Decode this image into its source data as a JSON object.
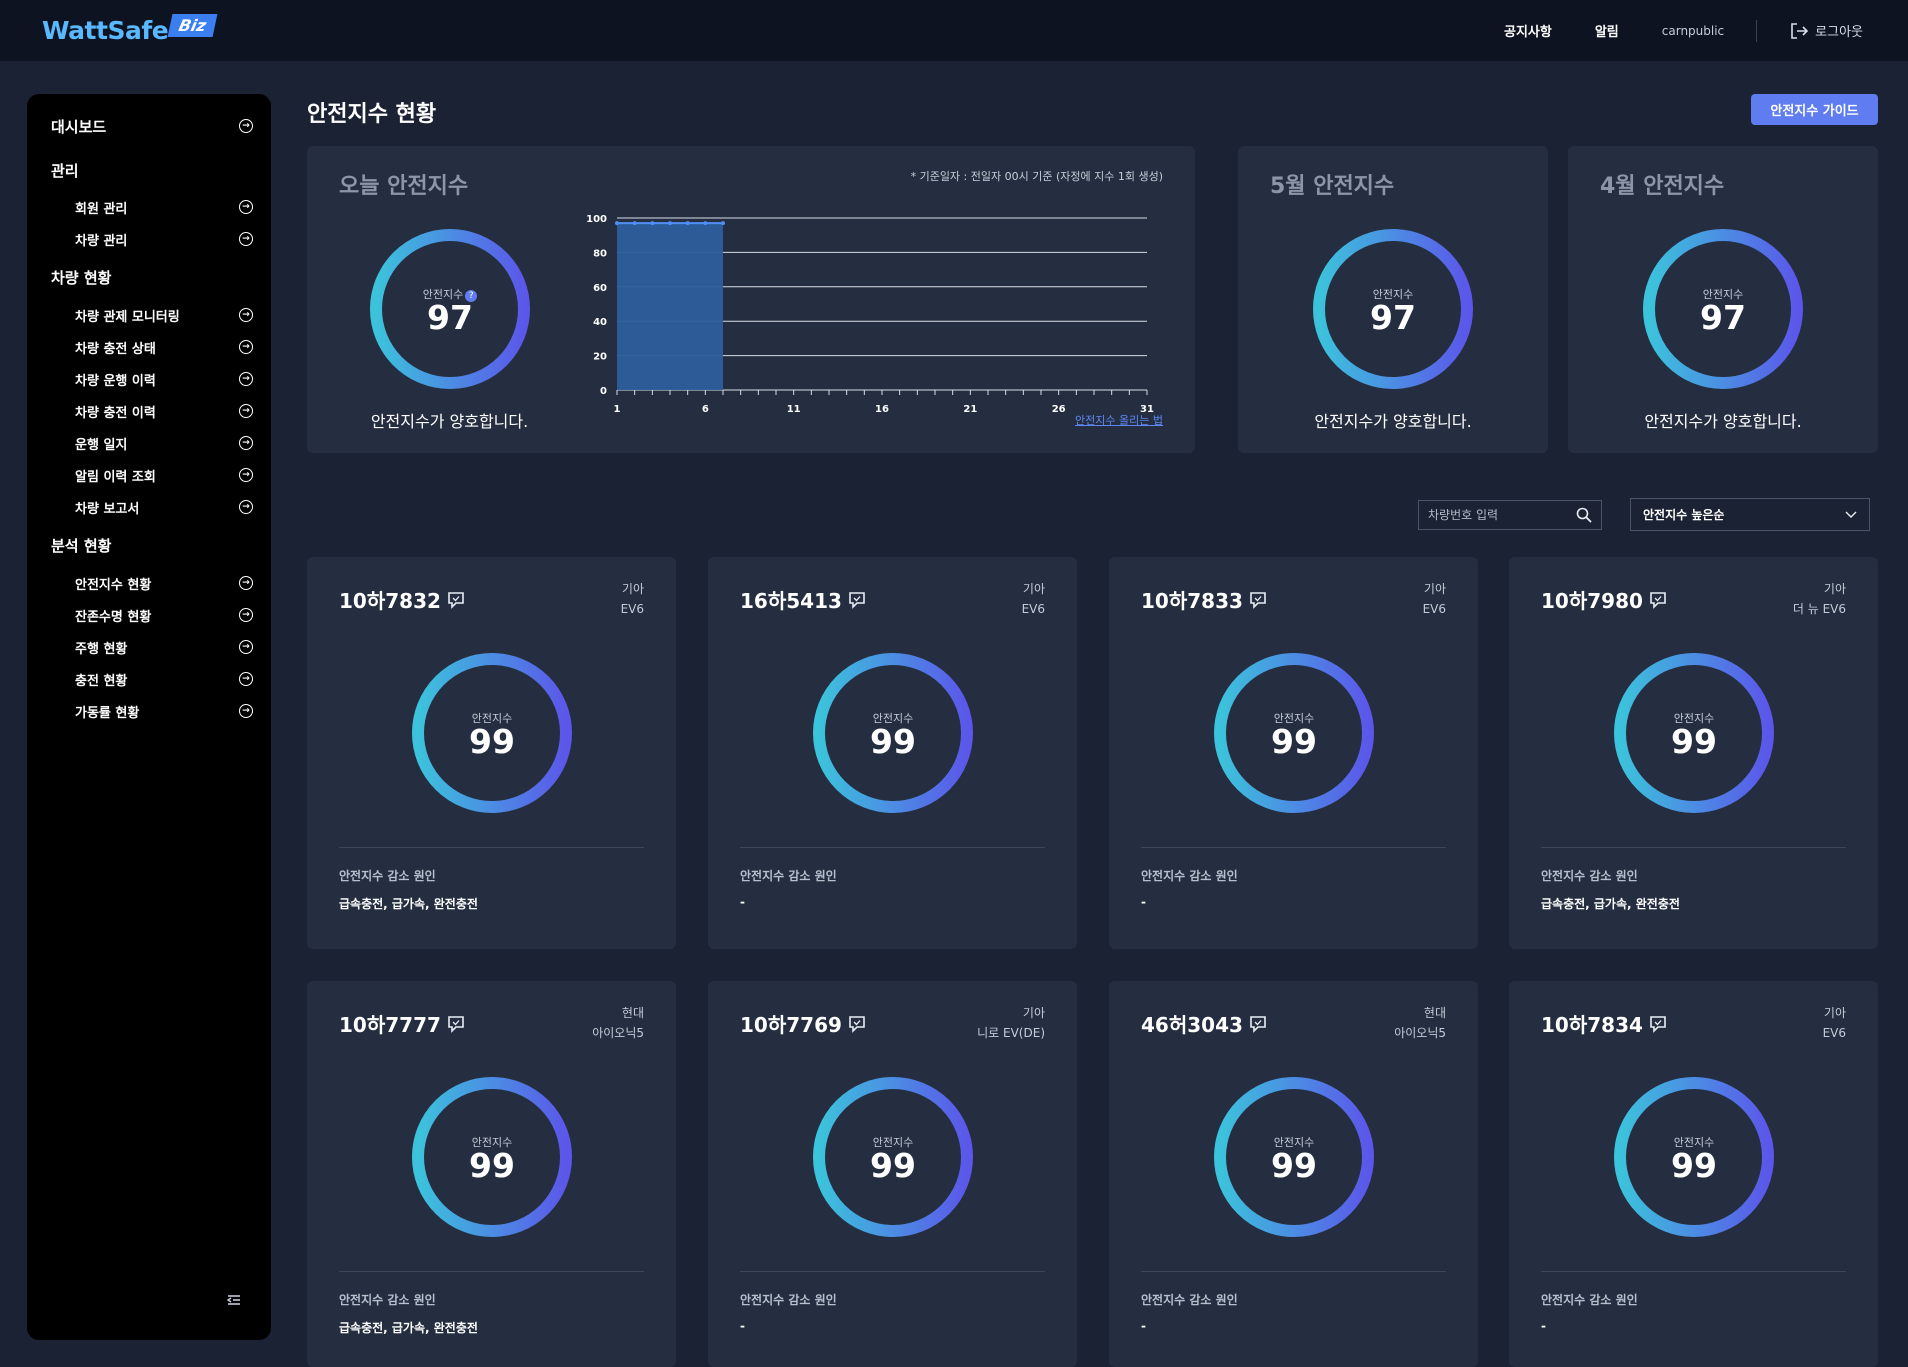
{
  "header": {
    "logo_text": "WattSafe",
    "logo_badge": "Biz",
    "nav_notice": "공지사항",
    "nav_alert": "알림",
    "user": "carnpublic",
    "logout": "로그아웃"
  },
  "sidebar": {
    "dashboard": "대시보드",
    "group_manage": "관리",
    "member_manage": "회원 관리",
    "vehicle_manage": "차량 관리",
    "group_vehicle_status": "차량 현황",
    "vehicle_monitoring": "차량 관제 모니터링",
    "charge_state": "차량 충전 상태",
    "drive_history": "차량 운행 이력",
    "charge_history": "차량 충전 이력",
    "drive_log": "운행 일지",
    "alert_history": "알림 이력 조회",
    "vehicle_report": "차량 보고서",
    "group_analysis": "분석 현황",
    "safety_status": "안전지수 현황",
    "life_status": "잔존수명 현황",
    "drive_status": "주행 현황",
    "charging_status": "충전 현황",
    "uptime_status": "가동률 현황"
  },
  "page": {
    "title": "안전지수 현황",
    "guide_button": "안전지수 가이드"
  },
  "today": {
    "title": "오늘 안전지수",
    "gauge_label": "안전지수",
    "help_icon": "?",
    "value": "97",
    "status": "안전지수가 양호합니다.",
    "note": "* 기준일자 : 전일자 00시 기준 (자정에 지수 1회 생성)",
    "link": "안전지수 올리는 법"
  },
  "chart_data": {
    "type": "area",
    "x_ticks": [
      "1",
      "6",
      "11",
      "16",
      "21",
      "26",
      "31"
    ],
    "y_ticks": [
      "0",
      "20",
      "40",
      "60",
      "80",
      "100"
    ],
    "xlim": [
      1,
      31
    ],
    "ylim": [
      0,
      100
    ],
    "x": [
      1,
      2,
      3,
      4,
      5,
      6,
      7
    ],
    "values": [
      97,
      97,
      97,
      97,
      97,
      97,
      97
    ],
    "grid": true
  },
  "monthly": [
    {
      "title": "5월 안전지수",
      "gauge_label": "안전지수",
      "value": "97",
      "status": "안전지수가 양호합니다."
    },
    {
      "title": "4월 안전지수",
      "gauge_label": "안전지수",
      "value": "97",
      "status": "안전지수가 양호합니다."
    }
  ],
  "search": {
    "placeholder": "차량번호 입력"
  },
  "sort": {
    "selected": "안전지수 높은순"
  },
  "vehicles": [
    {
      "plate": "10하7832",
      "maker": "기아",
      "model": "EV6",
      "gauge_label": "안전지수",
      "score": "99",
      "reason_label": "안전지수 감소 원인",
      "reason": "급속충전, 급가속, 완전충전"
    },
    {
      "plate": "16하5413",
      "maker": "기아",
      "model": "EV6",
      "gauge_label": "안전지수",
      "score": "99",
      "reason_label": "안전지수 감소 원인",
      "reason": "-"
    },
    {
      "plate": "10하7833",
      "maker": "기아",
      "model": "EV6",
      "gauge_label": "안전지수",
      "score": "99",
      "reason_label": "안전지수 감소 원인",
      "reason": "-"
    },
    {
      "plate": "10하7980",
      "maker": "기아",
      "model": "더 뉴 EV6",
      "gauge_label": "안전지수",
      "score": "99",
      "reason_label": "안전지수 감소 원인",
      "reason": "급속충전, 급가속, 완전충전"
    },
    {
      "plate": "10하7777",
      "maker": "현대",
      "model": "아이오닉5",
      "gauge_label": "안전지수",
      "score": "99",
      "reason_label": "안전지수 감소 원인",
      "reason": "급속충전, 급가속, 완전충전"
    },
    {
      "plate": "10하7769",
      "maker": "기아",
      "model": "니로 EV(DE)",
      "gauge_label": "안전지수",
      "score": "99",
      "reason_label": "안전지수 감소 원인",
      "reason": "-"
    },
    {
      "plate": "46허3043",
      "maker": "현대",
      "model": "아이오닉5",
      "gauge_label": "안전지수",
      "score": "99",
      "reason_label": "안전지수 감소 원인",
      "reason": "-"
    },
    {
      "plate": "10하7834",
      "maker": "기아",
      "model": "EV6",
      "gauge_label": "안전지수",
      "score": "99",
      "reason_label": "안전지수 감소 원인",
      "reason": "-"
    }
  ],
  "colors": {
    "gauge_start": "#3cc3dc",
    "gauge_end": "#5b57ea",
    "accent": "#5f7df0",
    "chart_fill": "#2e5e9c",
    "chart_line": "#4f8ef5"
  }
}
